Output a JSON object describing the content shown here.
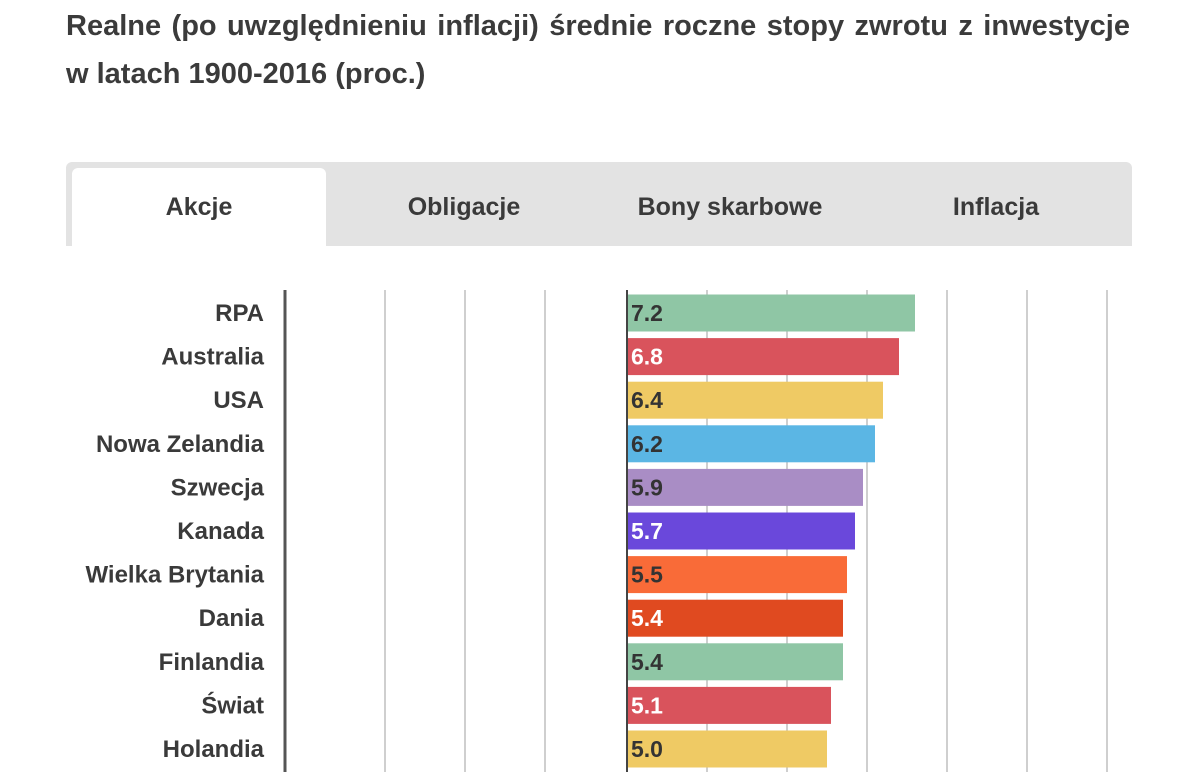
{
  "title": "Realne (po uwzględnieniu inflacji) średnie roczne stopy zwrotu z inwestycje w latach 1900-2016 (proc.)",
  "tabs": [
    {
      "label": "Akcje",
      "active": true
    },
    {
      "label": "Obligacje",
      "active": false
    },
    {
      "label": "Bony skarbowe",
      "active": false
    },
    {
      "label": "Inflacja",
      "active": false
    }
  ],
  "chart_data": {
    "type": "bar",
    "orientation": "horizontal",
    "title": "",
    "xlabel": "",
    "ylabel": "",
    "grid": true,
    "legend": "none",
    "categories": [
      "RPA",
      "Australia",
      "USA",
      "Nowa Zelandia",
      "Szwecja",
      "Kanada",
      "Wielka Brytania",
      "Dania",
      "Finlandia",
      "Świat",
      "Holandia"
    ],
    "values": [
      7.2,
      6.8,
      6.4,
      6.2,
      5.9,
      5.7,
      5.5,
      5.4,
      5.4,
      5.1,
      5.0
    ],
    "labels": [
      "7.2",
      "6.8",
      "6.4",
      "6.2",
      "5.9",
      "5.7",
      "5.5",
      "5.4",
      "5.4",
      "5.1",
      "5.0"
    ],
    "colors": [
      "#8fc6a5",
      "#d9535c",
      "#efca64",
      "#5bb6e4",
      "#a98dc5",
      "#6a48db",
      "#f96b38",
      "#e04a20",
      "#8fc6a5",
      "#d9535c",
      "#efca64"
    ],
    "label_colors": [
      "#333333",
      "#ffffff",
      "#333333",
      "#333333",
      "#333333",
      "#ffffff",
      "#333333",
      "#ffffff",
      "#333333",
      "#ffffff",
      "#333333"
    ]
  }
}
